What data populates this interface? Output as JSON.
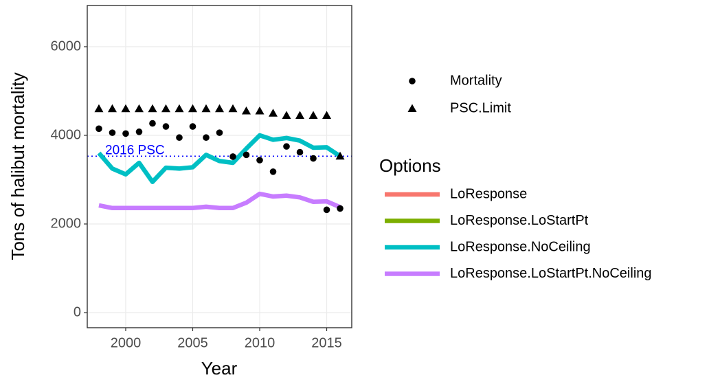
{
  "chart_data": {
    "type": "line",
    "x_label": "Year",
    "y_label": "Tons of halibut mortality",
    "x": [
      1998,
      1999,
      2000,
      2001,
      2002,
      2003,
      2004,
      2005,
      2006,
      2007,
      2008,
      2009,
      2010,
      2011,
      2012,
      2013,
      2014,
      2015,
      2016
    ],
    "xlim": [
      1997.13,
      2016.87
    ],
    "xticks": [
      2000,
      2005,
      2010,
      2015
    ],
    "ylim": [
      -341,
      6930
    ],
    "yticks": [
      0,
      2000,
      4000,
      6000
    ],
    "grid": true,
    "point_series": [
      {
        "name": "Mortality",
        "marker": "circle",
        "color": "#000000",
        "values": [
          4150,
          4060,
          4040,
          4080,
          4270,
          4200,
          3950,
          4200,
          3950,
          4060,
          3520,
          3560,
          3440,
          3180,
          3750,
          3620,
          3480,
          2320,
          2350
        ]
      },
      {
        "name": "PSC.Limit",
        "marker": "triangle",
        "color": "#000000",
        "values": [
          4600,
          4600,
          4600,
          4600,
          4600,
          4600,
          4600,
          4600,
          4600,
          4600,
          4600,
          4550,
          4550,
          4500,
          4450,
          4450,
          4450,
          4450,
          3530
        ]
      }
    ],
    "legend_title": "Options",
    "series": [
      {
        "name": "LoResponse",
        "color": "#F8766D",
        "values": [
          null,
          null,
          null,
          null,
          null,
          null,
          null,
          null,
          null,
          null,
          null,
          null,
          null,
          null,
          null,
          null,
          null,
          null,
          null
        ]
      },
      {
        "name": "LoResponse.LoStartPt",
        "color": "#7CAE00",
        "values": [
          null,
          null,
          null,
          null,
          null,
          null,
          null,
          null,
          null,
          null,
          null,
          null,
          null,
          null,
          null,
          null,
          null,
          null,
          null
        ]
      },
      {
        "name": "LoResponse.NoCeiling",
        "color": "#00BFC4",
        "values": [
          3600,
          3250,
          3120,
          3380,
          2950,
          3270,
          3250,
          3280,
          3560,
          3420,
          3380,
          3700,
          4000,
          3900,
          3940,
          3880,
          3720,
          3730,
          3530
        ]
      },
      {
        "name": "LoResponse.LoStartPt.NoCeiling",
        "color": "#C77CFF",
        "values": [
          2420,
          2360,
          2360,
          2360,
          2360,
          2360,
          2360,
          2360,
          2390,
          2360,
          2360,
          2480,
          2680,
          2620,
          2640,
          2600,
          2500,
          2510,
          2380
        ]
      }
    ],
    "reference_line": {
      "text": "2016 PSC",
      "value": 3530,
      "color": "#0000FF"
    }
  }
}
